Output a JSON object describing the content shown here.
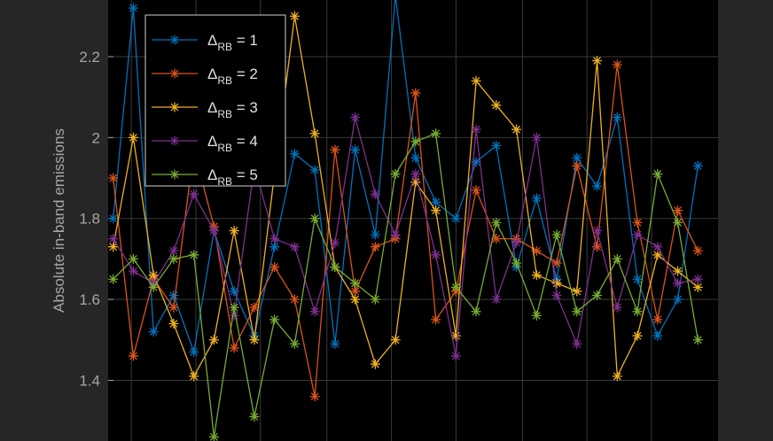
{
  "chart_data": {
    "type": "line",
    "title": "",
    "xlabel": "",
    "ylabel": "Absolute in-band emissions",
    "x": [
      1,
      2,
      3,
      4,
      5,
      6,
      7,
      8,
      9,
      10,
      11,
      12,
      13,
      14,
      15,
      16,
      17,
      18,
      19,
      20,
      21,
      22,
      23,
      24,
      25,
      26,
      27,
      28,
      29,
      30
    ],
    "xlim": [
      0.75,
      31.0
    ],
    "ylim": [
      1.25,
      2.34
    ],
    "yticks": [
      1.4,
      1.6,
      1.8,
      2.0,
      2.2
    ],
    "ytick_labels": [
      "1.4",
      "1.6",
      "1.8",
      "2",
      "2.2"
    ],
    "xgrid": [
      1.9,
      5.1,
      8.3,
      11.6,
      14.8,
      18.0,
      21.3,
      24.5,
      27.7
    ],
    "grid": true,
    "background_color": "#000000",
    "figure_color": "#262626",
    "grid_color": "#3a3a3a",
    "axis_text_color": "#a6a6a6",
    "marker": "asterisk",
    "legend": {
      "location": "top-left",
      "symbol": "Δ",
      "subscript": "RB",
      "background": "#000000",
      "border": "#cfcfcf"
    },
    "series": [
      {
        "name": "1",
        "label_parts": [
          "Δ",
          "RB",
          " = 1"
        ],
        "color": "#0072BD",
        "values": [
          1.8,
          2.32,
          1.52,
          1.61,
          1.47,
          1.77,
          1.62,
          1.51,
          1.73,
          1.96,
          1.92,
          1.49,
          1.97,
          1.76,
          2.35,
          1.95,
          1.84,
          1.8,
          1.94,
          1.98,
          1.68,
          1.85,
          1.65,
          1.95,
          1.88,
          2.05,
          1.65,
          1.51,
          1.6,
          1.93
        ]
      },
      {
        "name": "2",
        "label_parts": [
          "Δ",
          "RB",
          " = 2"
        ],
        "color": "#D95319",
        "values": [
          1.9,
          1.46,
          1.65,
          1.58,
          1.97,
          1.78,
          1.48,
          1.58,
          1.68,
          1.6,
          1.36,
          1.97,
          1.62,
          1.73,
          1.75,
          2.11,
          1.55,
          1.62,
          1.87,
          1.75,
          1.75,
          1.72,
          1.69,
          1.93,
          1.73,
          2.18,
          1.79,
          1.55,
          1.82,
          1.72
        ]
      },
      {
        "name": "3",
        "label_parts": [
          "Δ",
          "RB",
          " = 3"
        ],
        "color": "#EDB120",
        "values": [
          1.73,
          2.0,
          1.66,
          1.54,
          1.41,
          1.5,
          1.77,
          1.5,
          1.91,
          2.3,
          2.01,
          1.68,
          1.6,
          1.44,
          1.5,
          1.89,
          1.82,
          1.51,
          2.14,
          2.08,
          2.02,
          1.66,
          1.64,
          1.62,
          2.19,
          1.41,
          1.51,
          1.71,
          1.67,
          1.63
        ]
      },
      {
        "name": "4",
        "label_parts": [
          "Δ",
          "RB",
          " = 4"
        ],
        "color": "#7E2F8E",
        "values": [
          1.75,
          1.67,
          1.64,
          1.72,
          1.86,
          1.77,
          1.56,
          1.93,
          1.75,
          1.73,
          1.57,
          1.74,
          2.05,
          1.86,
          1.76,
          1.91,
          1.71,
          1.46,
          2.02,
          1.6,
          1.74,
          2.0,
          1.61,
          1.49,
          1.77,
          1.58,
          1.76,
          1.73,
          1.64,
          1.65
        ]
      },
      {
        "name": "5",
        "label_parts": [
          "Δ",
          "RB",
          " = 5"
        ],
        "color": "#77AC30",
        "values": [
          1.65,
          1.7,
          1.63,
          1.7,
          1.71,
          1.26,
          1.58,
          1.31,
          1.55,
          1.49,
          1.8,
          1.68,
          1.64,
          1.6,
          1.91,
          1.99,
          2.01,
          1.63,
          1.57,
          1.79,
          1.69,
          1.56,
          1.76,
          1.57,
          1.61,
          1.7,
          1.57,
          1.91,
          1.79,
          1.5
        ]
      }
    ]
  }
}
